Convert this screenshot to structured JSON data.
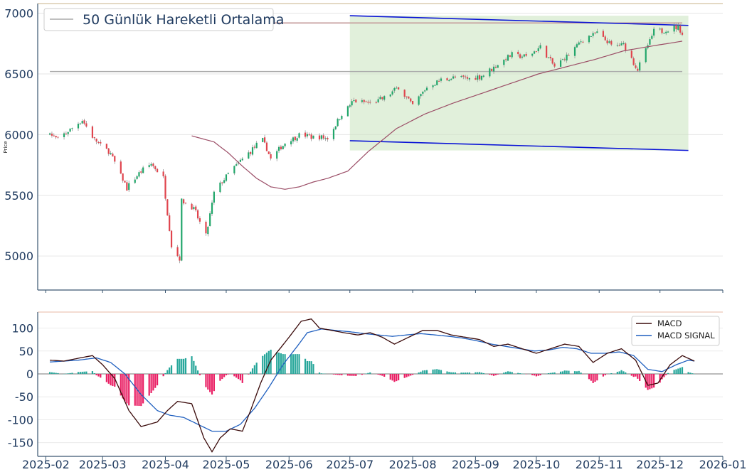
{
  "chart_data": [
    {
      "type": "candlestick",
      "title": "",
      "xlabel": "",
      "ylabel": "Price",
      "ylim": [
        4720,
        7080
      ],
      "yticks": [
        5000,
        5500,
        6000,
        6500,
        7000
      ],
      "grid": true,
      "legend_position": "top-left",
      "legend": [
        "50 Günlük Hareketli Ortalama"
      ],
      "xdomain": [
        "2025-01-28",
        "2026-01-01"
      ],
      "price_keypoints": [
        [
          "2025-02-03",
          6000
        ],
        [
          "2025-02-07",
          5960
        ],
        [
          "2025-02-19",
          6120
        ],
        [
          "2025-02-25",
          5960
        ],
        [
          "2025-03-05",
          5840
        ],
        [
          "2025-03-13",
          5560
        ],
        [
          "2025-03-19",
          5680
        ],
        [
          "2025-03-25",
          5760
        ],
        [
          "2025-03-31",
          5640
        ],
        [
          "2025-04-04",
          5080
        ],
        [
          "2025-04-08",
          4980
        ],
        [
          "2025-04-09",
          5460
        ],
        [
          "2025-04-15",
          5390
        ],
        [
          "2025-04-21",
          5160
        ],
        [
          "2025-04-25",
          5520
        ],
        [
          "2025-05-02",
          5680
        ],
        [
          "2025-05-12",
          5850
        ],
        [
          "2025-05-19",
          5960
        ],
        [
          "2025-05-23",
          5800
        ],
        [
          "2025-05-30",
          5930
        ],
        [
          "2025-06-06",
          6000
        ],
        [
          "2025-06-13",
          5980
        ],
        [
          "2025-06-20",
          5970
        ],
        [
          "2025-06-27",
          6170
        ],
        [
          "2025-07-03",
          6280
        ],
        [
          "2025-07-11",
          6260
        ],
        [
          "2025-07-18",
          6300
        ],
        [
          "2025-07-25",
          6390
        ],
        [
          "2025-08-01",
          6240
        ],
        [
          "2025-08-08",
          6390
        ],
        [
          "2025-08-15",
          6450
        ],
        [
          "2025-08-22",
          6470
        ],
        [
          "2025-08-29",
          6460
        ],
        [
          "2025-09-05",
          6490
        ],
        [
          "2025-09-12",
          6580
        ],
        [
          "2025-09-19",
          6660
        ],
        [
          "2025-09-26",
          6640
        ],
        [
          "2025-10-03",
          6720
        ],
        [
          "2025-10-10",
          6560
        ],
        [
          "2025-10-17",
          6660
        ],
        [
          "2025-10-24",
          6790
        ],
        [
          "2025-10-31",
          6840
        ],
        [
          "2025-11-04",
          6780
        ],
        [
          "2025-11-07",
          6730
        ],
        [
          "2025-11-13",
          6740
        ],
        [
          "2025-11-20",
          6540
        ],
        [
          "2025-11-24",
          6700
        ],
        [
          "2025-11-28",
          6850
        ],
        [
          "2025-12-04",
          6860
        ],
        [
          "2025-12-10",
          6890
        ],
        [
          "2025-12-12",
          6830
        ]
      ],
      "ma50_keypoints": [
        [
          "2025-04-14",
          5990
        ],
        [
          "2025-04-25",
          5940
        ],
        [
          "2025-05-02",
          5850
        ],
        [
          "2025-05-09",
          5740
        ],
        [
          "2025-05-16",
          5640
        ],
        [
          "2025-05-23",
          5570
        ],
        [
          "2025-05-30",
          5550
        ],
        [
          "2025-06-06",
          5570
        ],
        [
          "2025-06-13",
          5610
        ],
        [
          "2025-06-20",
          5640
        ],
        [
          "2025-06-30",
          5700
        ],
        [
          "2025-07-10",
          5860
        ],
        [
          "2025-07-24",
          6050
        ],
        [
          "2025-08-07",
          6170
        ],
        [
          "2025-08-21",
          6260
        ],
        [
          "2025-09-04",
          6340
        ],
        [
          "2025-09-18",
          6420
        ],
        [
          "2025-10-02",
          6500
        ],
        [
          "2025-10-16",
          6560
        ],
        [
          "2025-10-30",
          6620
        ],
        [
          "2025-11-13",
          6690
        ],
        [
          "2025-11-27",
          6730
        ],
        [
          "2025-12-12",
          6770
        ]
      ],
      "annotations": {
        "upper_trendline": {
          "start": [
            "2025-07-01",
            6980
          ],
          "end": [
            "2025-12-15",
            6900
          ],
          "color": "#0a14d6"
        },
        "lower_trendline": {
          "start": [
            "2025-07-01",
            5950
          ],
          "end": [
            "2025-12-15",
            5870
          ],
          "color": "#0a14d6"
        },
        "channel_fill": {
          "from": "2025-07-01",
          "to": "2025-12-15",
          "y_range": [
            5870,
            6980
          ],
          "color": "#c8e3bd"
        },
        "horizontal_levels": [
          {
            "y": 6920,
            "from": "2025-02-03",
            "to": "2025-12-12",
            "color": "#c39a9a"
          },
          {
            "y": 6520,
            "from": "2025-02-03",
            "to": "2025-12-12",
            "color": "#aaaaaa"
          }
        ]
      },
      "colors": {
        "up": "#21a66a",
        "down": "#e0444d",
        "ma": "#9b4d66"
      }
    },
    {
      "type": "line+bar",
      "title": "",
      "xlabel": "",
      "ylabel": "",
      "ylim": [
        -180,
        135
      ],
      "yticks": [
        -150,
        -100,
        -50,
        0,
        50,
        100
      ],
      "grid": true,
      "legend_position": "top-right",
      "series": [
        {
          "name": "MACD",
          "color": "#3a0a0a",
          "points": [
            [
              "2025-02-03",
              30
            ],
            [
              "2025-02-10",
              28
            ],
            [
              "2025-02-18",
              35
            ],
            [
              "2025-02-24",
              40
            ],
            [
              "2025-03-01",
              20
            ],
            [
              "2025-03-07",
              -10
            ],
            [
              "2025-03-14",
              -80
            ],
            [
              "2025-03-20",
              -115
            ],
            [
              "2025-03-28",
              -105
            ],
            [
              "2025-04-02",
              -80
            ],
            [
              "2025-04-07",
              -60
            ],
            [
              "2025-04-14",
              -65
            ],
            [
              "2025-04-20",
              -140
            ],
            [
              "2025-04-24",
              -170
            ],
            [
              "2025-04-28",
              -140
            ],
            [
              "2025-05-03",
              -120
            ],
            [
              "2025-05-09",
              -125
            ],
            [
              "2025-05-13",
              -80
            ],
            [
              "2025-05-18",
              -20
            ],
            [
              "2025-05-23",
              30
            ],
            [
              "2025-06-01",
              80
            ],
            [
              "2025-06-07",
              115
            ],
            [
              "2025-06-12",
              120
            ],
            [
              "2025-06-16",
              100
            ],
            [
              "2025-06-22",
              95
            ],
            [
              "2025-06-28",
              90
            ],
            [
              "2025-07-05",
              85
            ],
            [
              "2025-07-11",
              90
            ],
            [
              "2025-07-17",
              80
            ],
            [
              "2025-07-23",
              65
            ],
            [
              "2025-07-30",
              80
            ],
            [
              "2025-08-06",
              95
            ],
            [
              "2025-08-13",
              95
            ],
            [
              "2025-08-20",
              85
            ],
            [
              "2025-08-27",
              80
            ],
            [
              "2025-09-03",
              75
            ],
            [
              "2025-09-10",
              60
            ],
            [
              "2025-09-17",
              65
            ],
            [
              "2025-09-24",
              55
            ],
            [
              "2025-10-01",
              45
            ],
            [
              "2025-10-08",
              55
            ],
            [
              "2025-10-15",
              65
            ],
            [
              "2025-10-22",
              60
            ],
            [
              "2025-10-29",
              25
            ],
            [
              "2025-11-05",
              45
            ],
            [
              "2025-11-12",
              55
            ],
            [
              "2025-11-19",
              30
            ],
            [
              "2025-11-25",
              -25
            ],
            [
              "2025-11-30",
              -20
            ],
            [
              "2025-12-06",
              20
            ],
            [
              "2025-12-12",
              40
            ],
            [
              "2025-12-18",
              28
            ]
          ]
        },
        {
          "name": "MACD SIGNAL",
          "color": "#1f5fbf",
          "points": [
            [
              "2025-02-03",
              26
            ],
            [
              "2025-02-17",
              30
            ],
            [
              "2025-02-26",
              35
            ],
            [
              "2025-03-05",
              25
            ],
            [
              "2025-03-12",
              0
            ],
            [
              "2025-03-20",
              -45
            ],
            [
              "2025-03-28",
              -80
            ],
            [
              "2025-04-03",
              -90
            ],
            [
              "2025-04-10",
              -95
            ],
            [
              "2025-04-17",
              -110
            ],
            [
              "2025-04-24",
              -125
            ],
            [
              "2025-05-01",
              -125
            ],
            [
              "2025-05-08",
              -110
            ],
            [
              "2025-05-15",
              -75
            ],
            [
              "2025-05-22",
              -30
            ],
            [
              "2025-05-29",
              20
            ],
            [
              "2025-06-05",
              60
            ],
            [
              "2025-06-10",
              90
            ],
            [
              "2025-06-17",
              98
            ],
            [
              "2025-06-24",
              95
            ],
            [
              "2025-07-01",
              92
            ],
            [
              "2025-07-08",
              88
            ],
            [
              "2025-07-15",
              85
            ],
            [
              "2025-07-22",
              82
            ],
            [
              "2025-07-29",
              85
            ],
            [
              "2025-08-05",
              88
            ],
            [
              "2025-08-12",
              85
            ],
            [
              "2025-08-19",
              82
            ],
            [
              "2025-08-26",
              78
            ],
            [
              "2025-09-02",
              72
            ],
            [
              "2025-09-09",
              65
            ],
            [
              "2025-09-16",
              60
            ],
            [
              "2025-09-23",
              55
            ],
            [
              "2025-09-30",
              50
            ],
            [
              "2025-10-07",
              52
            ],
            [
              "2025-10-14",
              58
            ],
            [
              "2025-10-21",
              55
            ],
            [
              "2025-10-28",
              45
            ],
            [
              "2025-11-04",
              45
            ],
            [
              "2025-11-11",
              48
            ],
            [
              "2025-11-18",
              40
            ],
            [
              "2025-11-25",
              10
            ],
            [
              "2025-12-02",
              5
            ],
            [
              "2025-12-09",
              20
            ],
            [
              "2025-12-15",
              30
            ],
            [
              "2025-12-18",
              28
            ]
          ]
        }
      ],
      "histogram": {
        "positive_color": "#26a69a",
        "negative_color": "#e91e63",
        "value": "MACD - MACD SIGNAL"
      },
      "xticks": [
        "2025-02",
        "2025-03",
        "2025-04",
        "2025-05",
        "2025-06",
        "2025-07",
        "2025-08",
        "2025-09",
        "2025-10",
        "2025-11",
        "2025-12",
        "2026-01"
      ]
    }
  ]
}
